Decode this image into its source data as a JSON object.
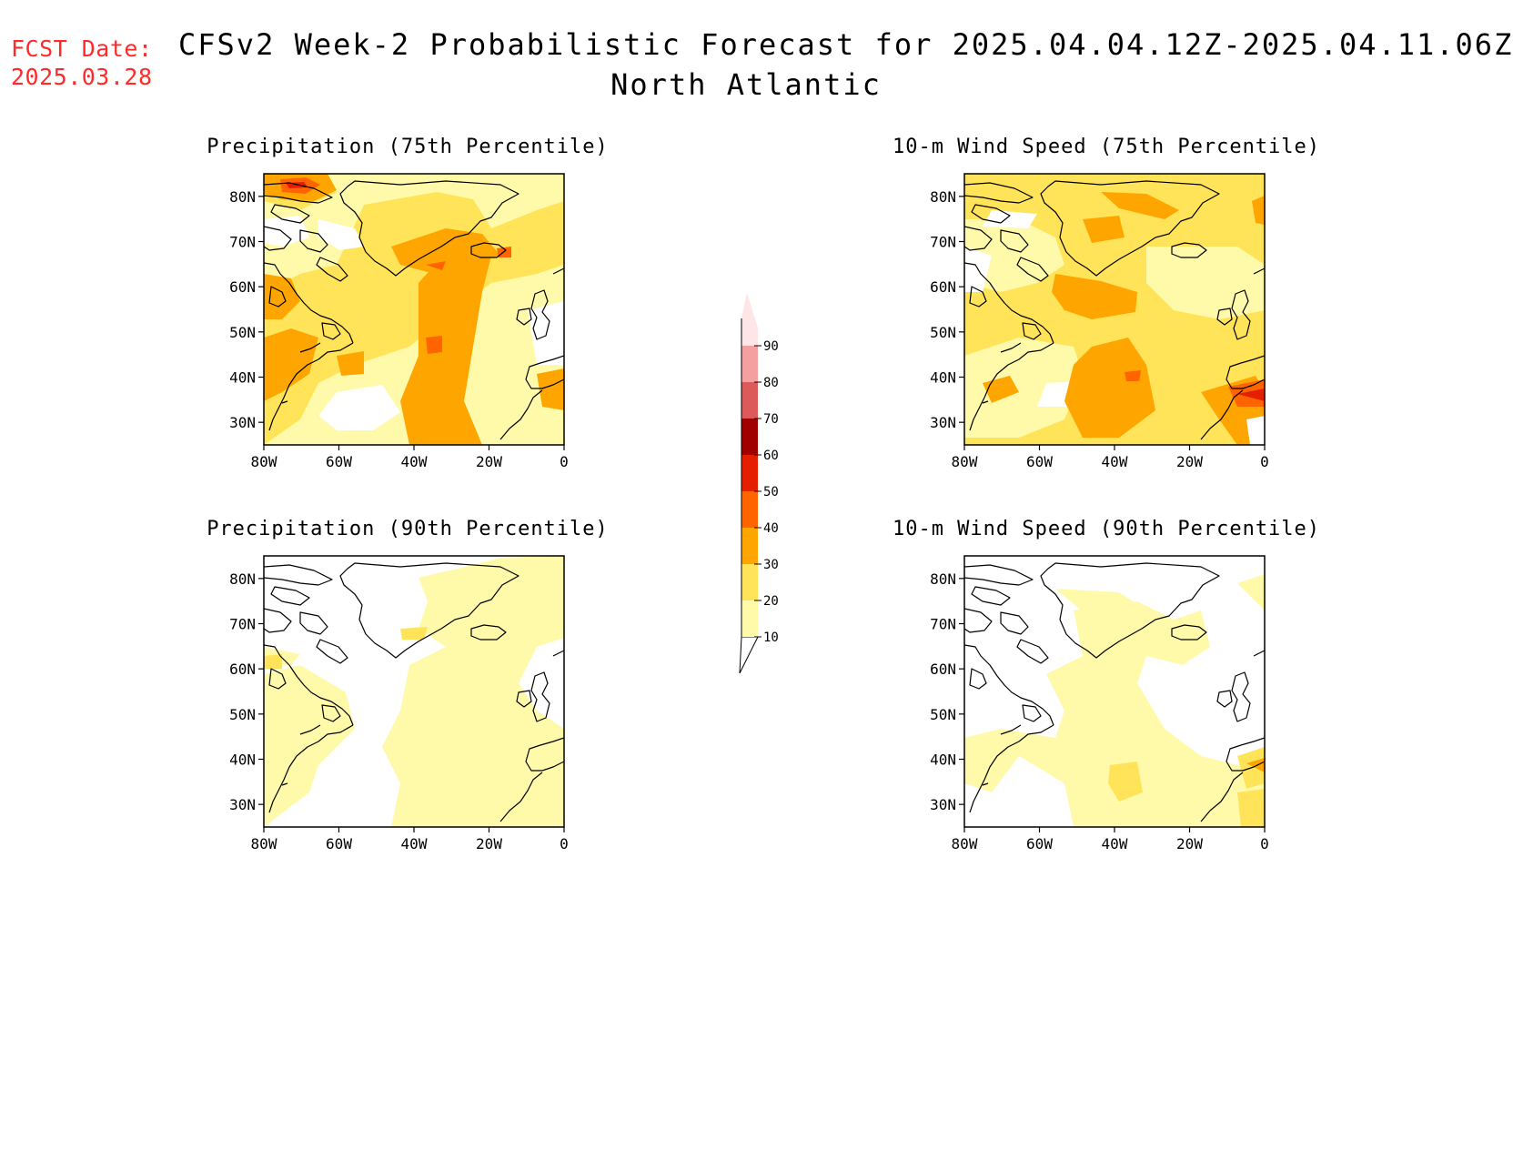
{
  "fcst_label": "FCST Date:",
  "fcst_date": "2025.03.28",
  "title_line1": "CFSv2 Week-2 Probabilistic Forecast for 2025.04.04.12Z-2025.04.11.06Z",
  "title_line2": "North Atlantic",
  "panels": [
    {
      "title": "Precipitation (75th Percentile)"
    },
    {
      "title": "10-m Wind Speed (75th Percentile)"
    },
    {
      "title": "Precipitation (90th Percentile)"
    },
    {
      "title": "10-m Wind Speed (90th Percentile)"
    }
  ],
  "lat_labels": [
    "80N",
    "70N",
    "60N",
    "50N",
    "40N",
    "30N"
  ],
  "lon_labels": [
    "80W",
    "60W",
    "40W",
    "20W",
    "0"
  ],
  "colorbar": {
    "labels": [
      "10",
      "20",
      "30",
      "40",
      "50",
      "60",
      "70",
      "80",
      "90"
    ],
    "colors": [
      "#fffaaa",
      "#ffe45a",
      "#ffa500",
      "#ff6400",
      "#e61e00",
      "#a00000",
      "#dc5a5a",
      "#f5a0a0",
      "#ffe6e6"
    ]
  }
}
